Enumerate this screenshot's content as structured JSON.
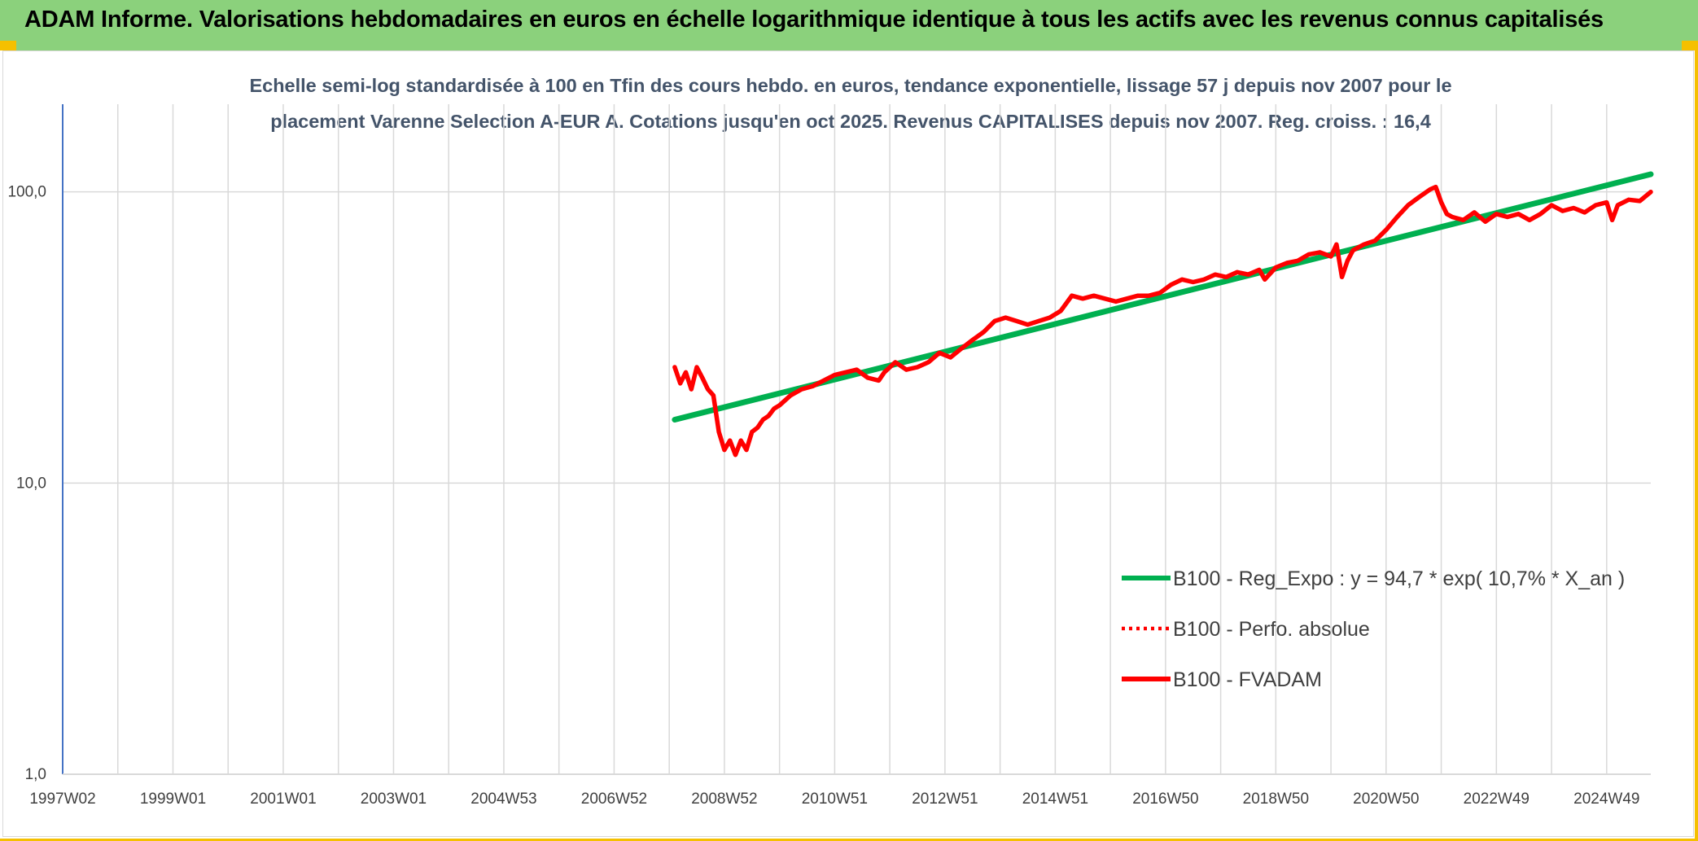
{
  "header": {
    "title": "ADAM Informe. Valorisations hebdomadaires en euros en échelle logarithmique identique à tous les actifs avec les revenus connus capitalisés"
  },
  "colors": {
    "banner": "#8bd17c",
    "accent": "#f5c000",
    "regression": "#00b050",
    "fvadam": "#ff0000",
    "grid": "#d9d9d9",
    "axis": "#4472c4"
  },
  "chart_data": {
    "type": "line",
    "title_lines": [
      "Echelle semi-log standardisée à 100 en Tfin des cours hebdo. en euros, tendance exponentielle, lissage 57 j depuis nov 2007 pour le",
      "placement Varenne Selection A-EUR A. Cotations jusqu'en oct 2025. Revenus CAPITALISES depuis nov 2007. Reg. croiss. : 16,4"
    ],
    "y_scale": "log",
    "ylim": [
      1,
      100
    ],
    "y_ticks": [
      "1,0",
      "10,0",
      "100,0"
    ],
    "xlim": [
      1997.0,
      2025.8
    ],
    "x_ticks": [
      {
        "label": "1997W02",
        "t": 1997.0
      },
      {
        "label": "1999W01",
        "t": 1999.0
      },
      {
        "label": "2001W01",
        "t": 2001.0
      },
      {
        "label": "2003W01",
        "t": 2003.0
      },
      {
        "label": "2004W53",
        "t": 2005.0
      },
      {
        "label": "2006W52",
        "t": 2007.0
      },
      {
        "label": "2008W52",
        "t": 2009.0
      },
      {
        "label": "2010W51",
        "t": 2011.0
      },
      {
        "label": "2012W51",
        "t": 2013.0
      },
      {
        "label": "2014W51",
        "t": 2015.0
      },
      {
        "label": "2016W50",
        "t": 2017.0
      },
      {
        "label": "2018W50",
        "t": 2019.0
      },
      {
        "label": "2020W50",
        "t": 2021.0
      },
      {
        "label": "2022W49",
        "t": 2023.0
      },
      {
        "label": "2024W49",
        "t": 2025.0
      }
    ],
    "grid": "vertical",
    "legend_position": "lower-right",
    "legend": [
      {
        "label": "B100 - Reg_Expo : y = 94,7 * exp( 10,7% *  X_an )",
        "style": "solid",
        "color": "#00b050"
      },
      {
        "label": "B100 - Perfo. absolue",
        "style": "dotted",
        "color": "#ff0000"
      },
      {
        "label": "B100 - FVADAM",
        "style": "solid",
        "color": "#ff0000"
      }
    ],
    "series": [
      {
        "name": "B100 - Reg_Expo : y = 94,7 * exp( 10,7% *  X_an )",
        "color": "#00b050",
        "x": [
          2008.1,
          2025.8
        ],
        "y": [
          16.5,
          115
        ]
      },
      {
        "name": "B100 - FVADAM",
        "color": "#ff0000",
        "x": [
          2008.1,
          2008.2,
          2008.3,
          2008.4,
          2008.5,
          2008.6,
          2008.7,
          2008.8,
          2008.9,
          2009.0,
          2009.1,
          2009.2,
          2009.3,
          2009.4,
          2009.5,
          2009.6,
          2009.7,
          2009.8,
          2009.9,
          2010.0,
          2010.2,
          2010.4,
          2010.6,
          2010.8,
          2011.0,
          2011.2,
          2011.4,
          2011.6,
          2011.8,
          2011.9,
          2012.1,
          2012.3,
          2012.5,
          2012.7,
          2012.9,
          2013.1,
          2013.3,
          2013.5,
          2013.7,
          2013.9,
          2014.1,
          2014.3,
          2014.5,
          2014.7,
          2014.9,
          2015.1,
          2015.3,
          2015.5,
          2015.7,
          2015.9,
          2016.1,
          2016.3,
          2016.5,
          2016.7,
          2016.9,
          2017.1,
          2017.3,
          2017.5,
          2017.7,
          2017.9,
          2018.1,
          2018.3,
          2018.5,
          2018.7,
          2018.8,
          2019.0,
          2019.2,
          2019.4,
          2019.6,
          2019.8,
          2020.0,
          2020.1,
          2020.2,
          2020.3,
          2020.4,
          2020.6,
          2020.8,
          2021.0,
          2021.2,
          2021.4,
          2021.6,
          2021.8,
          2021.9,
          2022.0,
          2022.1,
          2022.2,
          2022.4,
          2022.6,
          2022.8,
          2023.0,
          2023.2,
          2023.4,
          2023.6,
          2023.8,
          2024.0,
          2024.2,
          2024.4,
          2024.6,
          2024.8,
          2025.0,
          2025.1,
          2025.2,
          2025.4,
          2025.6,
          2025.8
        ],
        "y": [
          25,
          22,
          24,
          21,
          25,
          23,
          21,
          20,
          15,
          13,
          14,
          12.5,
          14,
          13,
          15,
          15.5,
          16.5,
          17,
          18,
          18.5,
          20,
          21,
          21.5,
          22.5,
          23.5,
          24,
          24.5,
          23,
          22.5,
          24,
          26,
          24.5,
          25,
          26,
          28,
          27,
          29,
          31,
          33,
          36,
          37,
          36,
          35,
          36,
          37,
          39,
          44,
          43,
          44,
          43,
          42,
          43,
          44,
          44,
          45,
          48,
          50,
          49,
          50,
          52,
          51,
          53,
          52,
          54,
          50,
          55,
          57,
          58,
          61,
          62,
          60,
          66,
          51,
          58,
          63,
          66,
          68,
          74,
          82,
          90,
          96,
          102,
          104,
          92,
          84,
          82,
          80,
          85,
          79,
          84,
          82,
          84,
          80,
          84,
          90,
          86,
          88,
          85,
          90,
          92,
          80,
          90,
          94,
          93,
          100
        ]
      }
    ]
  }
}
